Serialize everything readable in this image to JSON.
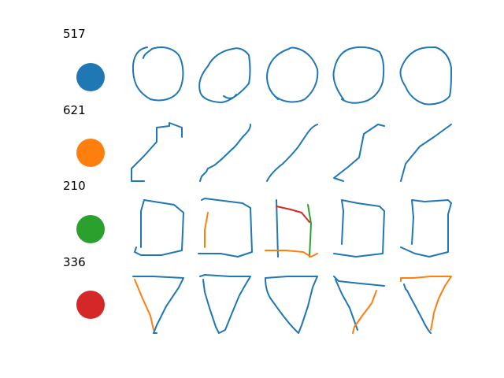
{
  "rows": [
    {
      "count": "517",
      "category": "circle",
      "dot_color": "#1f77b4"
    },
    {
      "count": "621",
      "category": "line",
      "dot_color": "#ff7f0e"
    },
    {
      "count": "210",
      "category": "square",
      "dot_color": "#2ca02c"
    },
    {
      "count": "336",
      "category": "triangle",
      "dot_color": "#d62728"
    }
  ],
  "stroke_colors": {
    "blue": "#1f77b4",
    "orange": "#ff7f0e",
    "green": "#2ca02c",
    "red": "#d62728"
  }
}
